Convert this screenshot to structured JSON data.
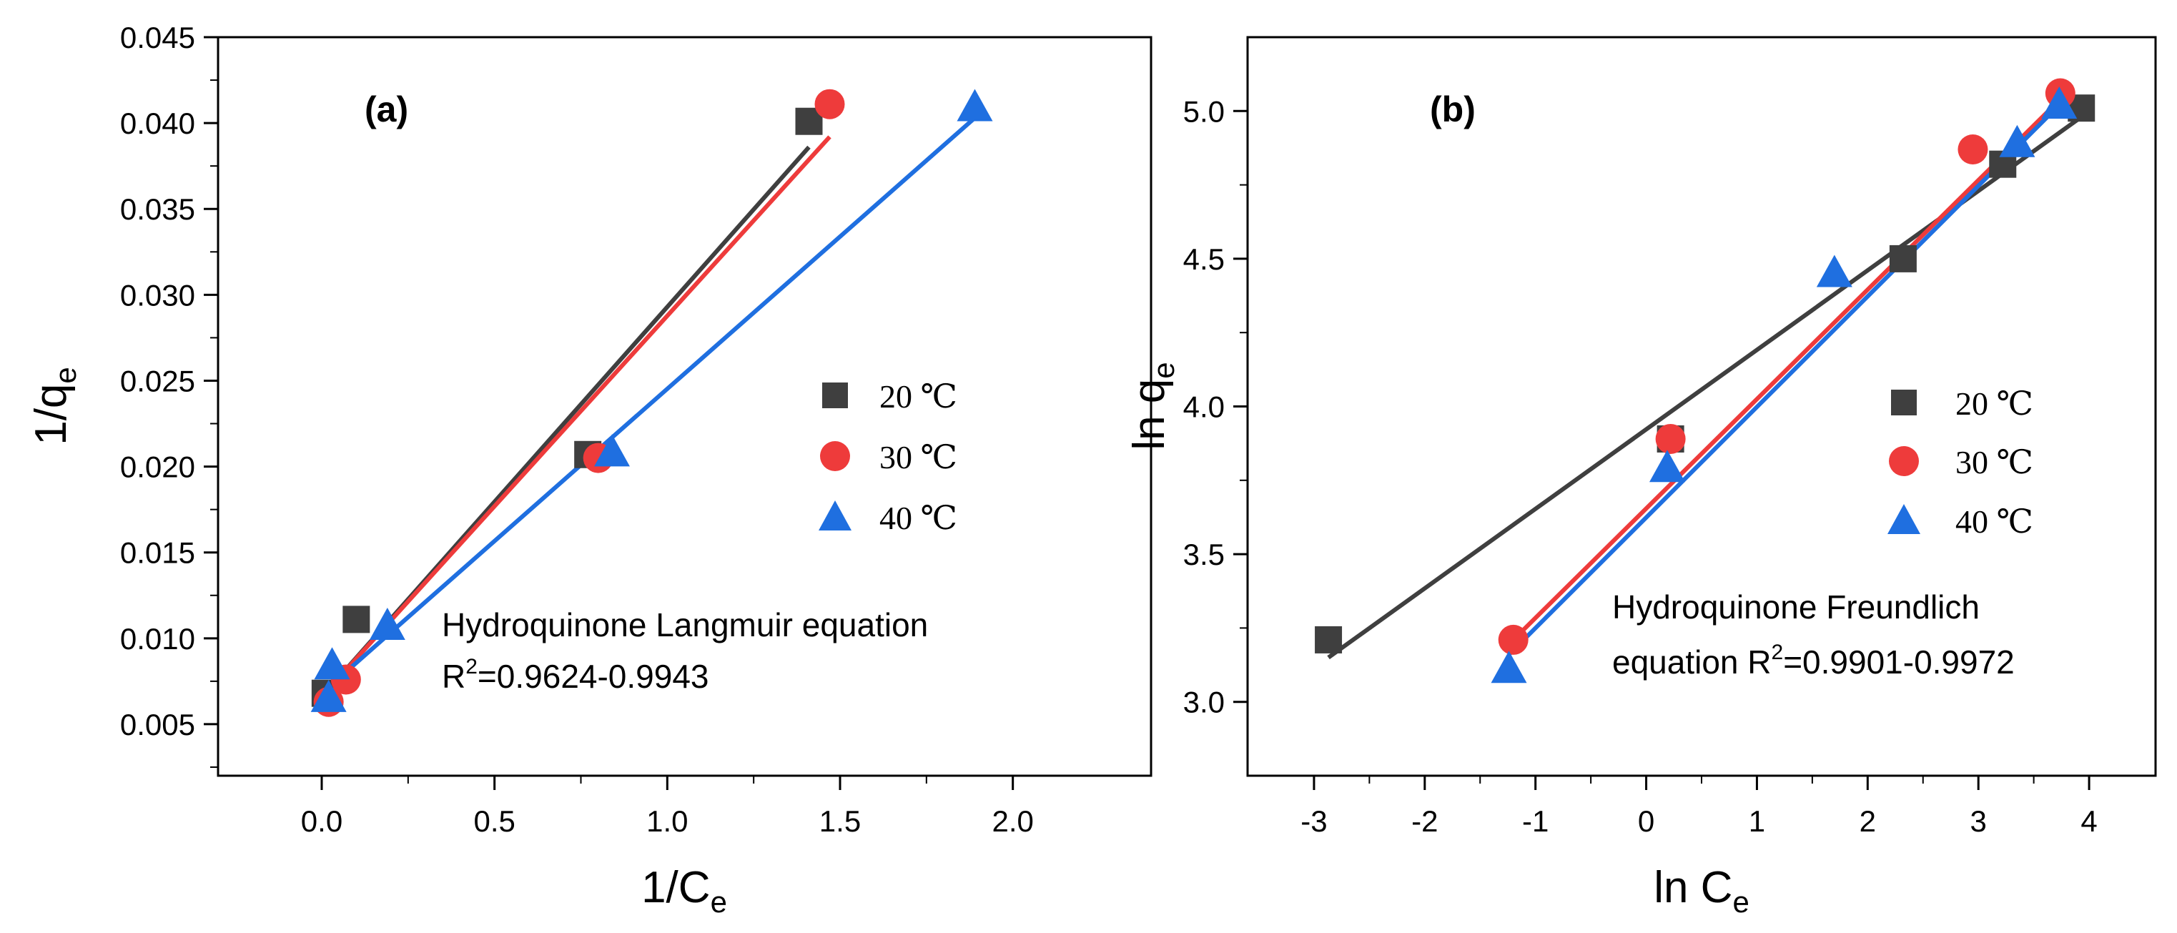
{
  "chart_data": [
    {
      "panel_label": "(a)",
      "type": "scatter",
      "xlabel": {
        "main": "1/C",
        "sub": "e"
      },
      "ylabel": {
        "main": "1/q",
        "sub": "e"
      },
      "xlim": [
        -0.3,
        2.4
      ],
      "ylim": [
        0.002,
        0.045
      ],
      "xticks": [
        0.0,
        0.5,
        1.0,
        1.5,
        2.0
      ],
      "xtick_labels": [
        "0.0",
        "0.5",
        "1.0",
        "1.5",
        "2.0"
      ],
      "yticks": [
        0.005,
        0.01,
        0.015,
        0.02,
        0.025,
        0.03,
        0.035,
        0.04,
        0.045
      ],
      "ytick_labels": [
        "0.005",
        "0.010",
        "0.015",
        "0.020",
        "0.025",
        "0.030",
        "0.035",
        "0.040",
        "0.045"
      ],
      "legend_position": "center-right",
      "series": [
        {
          "name": "20 ℃",
          "marker": "square",
          "color": "#3f3f3f",
          "x": [
            0.01,
            0.1,
            0.77,
            1.41
          ],
          "y": [
            0.0068,
            0.0111,
            0.0207,
            0.0401
          ],
          "fit": {
            "x": [
              0.0,
              1.41
            ],
            "y": [
              0.0066,
              0.0386
            ]
          }
        },
        {
          "name": "30 ℃",
          "marker": "circle",
          "color": "#ee3b3b",
          "x": [
            0.02,
            0.07,
            0.8,
            1.47
          ],
          "y": [
            0.0063,
            0.0076,
            0.0205,
            0.0411
          ],
          "fit": {
            "x": [
              0.0,
              1.47
            ],
            "y": [
              0.0066,
              0.0392
            ]
          }
        },
        {
          "name": "40 ℃",
          "marker": "triangle",
          "color": "#1f6fe0",
          "x": [
            0.03,
            0.02,
            0.19,
            0.84,
            1.89
          ],
          "y": [
            0.0084,
            0.0065,
            0.0107,
            0.0208,
            0.0409
          ],
          "fit": {
            "x": [
              0.0,
              1.89
            ],
            "y": [
              0.0068,
              0.0403
            ]
          }
        }
      ],
      "annotation": {
        "line1": "Hydroquinone Langmuir equation",
        "line2_prefix": "R",
        "line2_sup": "2",
        "line2_rest": "=0.9624-0.9943"
      }
    },
    {
      "panel_label": "(b)",
      "type": "scatter",
      "xlabel": {
        "main": "ln C",
        "sub": "e"
      },
      "ylabel": {
        "main": "ln q",
        "sub": "e"
      },
      "xlim": [
        -3.6,
        4.6
      ],
      "ylim": [
        2.75,
        5.25
      ],
      "xticks": [
        -3,
        -2,
        -1,
        0,
        1,
        2,
        3,
        4
      ],
      "xtick_labels": [
        "-3",
        "-2",
        "-1",
        "0",
        "1",
        "2",
        "3",
        "4"
      ],
      "yticks": [
        3.0,
        3.5,
        4.0,
        4.5,
        5.0
      ],
      "ytick_labels": [
        "3.0",
        "3.5",
        "4.0",
        "4.5",
        "5.0"
      ],
      "legend_position": "center-right",
      "series": [
        {
          "name": "20 ℃",
          "marker": "square",
          "color": "#3f3f3f",
          "x": [
            -2.87,
            0.22,
            2.32,
            3.22,
            3.93
          ],
          "y": [
            3.21,
            3.89,
            4.5,
            4.82,
            5.01
          ],
          "fit": {
            "x": [
              -2.87,
              3.93
            ],
            "y": [
              3.15,
              4.98
            ]
          }
        },
        {
          "name": "30 ℃",
          "marker": "circle",
          "color": "#ee3b3b",
          "x": [
            -1.2,
            0.22,
            2.95,
            3.74
          ],
          "y": [
            3.21,
            3.89,
            4.87,
            5.06
          ],
          "fit": {
            "x": [
              -1.2,
              3.74
            ],
            "y": [
              3.21,
              5.04
            ]
          }
        },
        {
          "name": "40 ℃",
          "marker": "triangle",
          "color": "#1f6fe0",
          "x": [
            -1.24,
            0.19,
            1.7,
            3.35,
            3.73
          ],
          "y": [
            3.11,
            3.79,
            4.45,
            4.89,
            5.02
          ],
          "fit": {
            "x": [
              -1.24,
              3.73
            ],
            "y": [
              3.16,
              5.02
            ]
          }
        }
      ],
      "annotation": {
        "line1": "Hydroquinone Freundlich",
        "line2_prefix": "equation R",
        "line2_sup": "2",
        "line2_rest": "=0.9901-0.9972"
      }
    }
  ]
}
